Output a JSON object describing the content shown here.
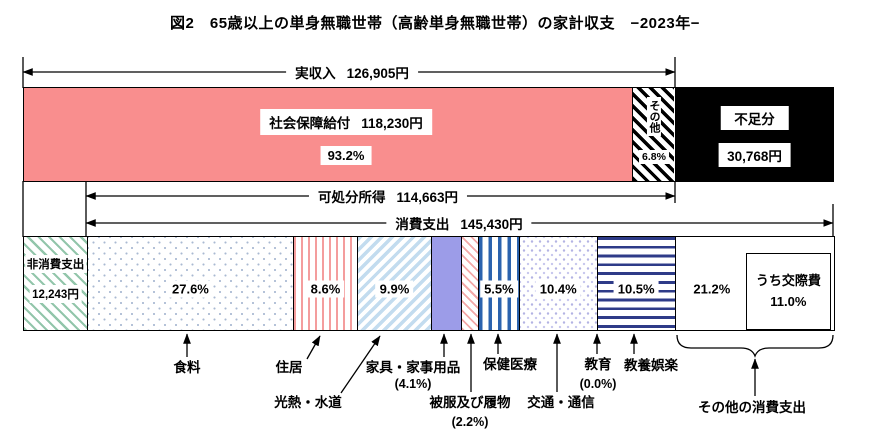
{
  "title": "図2　65歳以上の単身無職世帯（高齢単身無職世帯）の家計収支　−2023年−",
  "chart_data": {
    "type": "bar",
    "title": "図2　65歳以上の単身無職世帯（高齢単身無職世帯）の家計収支　−2023年−",
    "year": "2023年",
    "unit": "円",
    "income": {
      "label": "実収入",
      "value": 126905,
      "value_label": "126,905円",
      "segments": [
        {
          "id": "social_security",
          "name": "社会保障給付",
          "value": 118230,
          "value_label": "118,230円",
          "pct": 93.2,
          "pct_label": "93.2%"
        },
        {
          "id": "income_other",
          "name": "その他",
          "pct": 6.8,
          "pct_label": "6.8%"
        }
      ]
    },
    "deficit": {
      "label": "不足分",
      "value": 30768,
      "value_label": "30,768円"
    },
    "disposable_income": {
      "label": "可処分所得",
      "value": 114663,
      "value_label": "114,663円"
    },
    "non_consumption": {
      "label": "非消費支出",
      "value": 12243,
      "value_label": "12,243円"
    },
    "consumption": {
      "label": "消費支出",
      "value": 145430,
      "value_label": "145,430円",
      "segments": [
        {
          "id": "food",
          "name": "食料",
          "pct": 27.6,
          "pct_label": "27.6%"
        },
        {
          "id": "housing",
          "name": "住居",
          "pct": 8.6,
          "pct_label": "8.6%"
        },
        {
          "id": "utilities",
          "name": "光熱・水道",
          "pct": 9.9,
          "pct_label": "9.9%"
        },
        {
          "id": "furniture",
          "name": "家具・家事用品",
          "pct": 4.1,
          "pct_label": "(4.1%)"
        },
        {
          "id": "clothing",
          "name": "被服及び履物",
          "pct": 2.2,
          "pct_label": "(2.2%)"
        },
        {
          "id": "medical",
          "name": "保健医療",
          "pct": 5.5,
          "pct_label": "5.5%"
        },
        {
          "id": "transport",
          "name": "交通・通信",
          "pct": 10.4,
          "pct_label": "10.4%"
        },
        {
          "id": "education",
          "name": "教育",
          "pct": 0.0,
          "pct_label": "(0.0%)"
        },
        {
          "id": "recreation",
          "name": "教養娯楽",
          "pct": 10.5,
          "pct_label": "10.5%"
        },
        {
          "id": "other",
          "name": "その他の消費支出",
          "pct": 21.2,
          "pct_label": "21.2%"
        }
      ],
      "other_detail": {
        "name": "うち交際費",
        "pct": 11.0,
        "pct_label": "11.0%"
      }
    }
  },
  "colors": {
    "social_security_fill": "#f98e8e",
    "deficit_fill": "#000000",
    "non_consumption_stripe": "#93c6ab",
    "food_dot": "#a9b9d2",
    "housing_stripe": "#f49d9d",
    "utilities_stripe": "#c3dcef",
    "furniture_fill": "#9c9ce8",
    "clothing_stripe": "#f3a8a8",
    "medical_stripe": "#2b63ae",
    "transport_dot": "#b3b3e3",
    "recreation_stripe": "#2e3b88"
  }
}
